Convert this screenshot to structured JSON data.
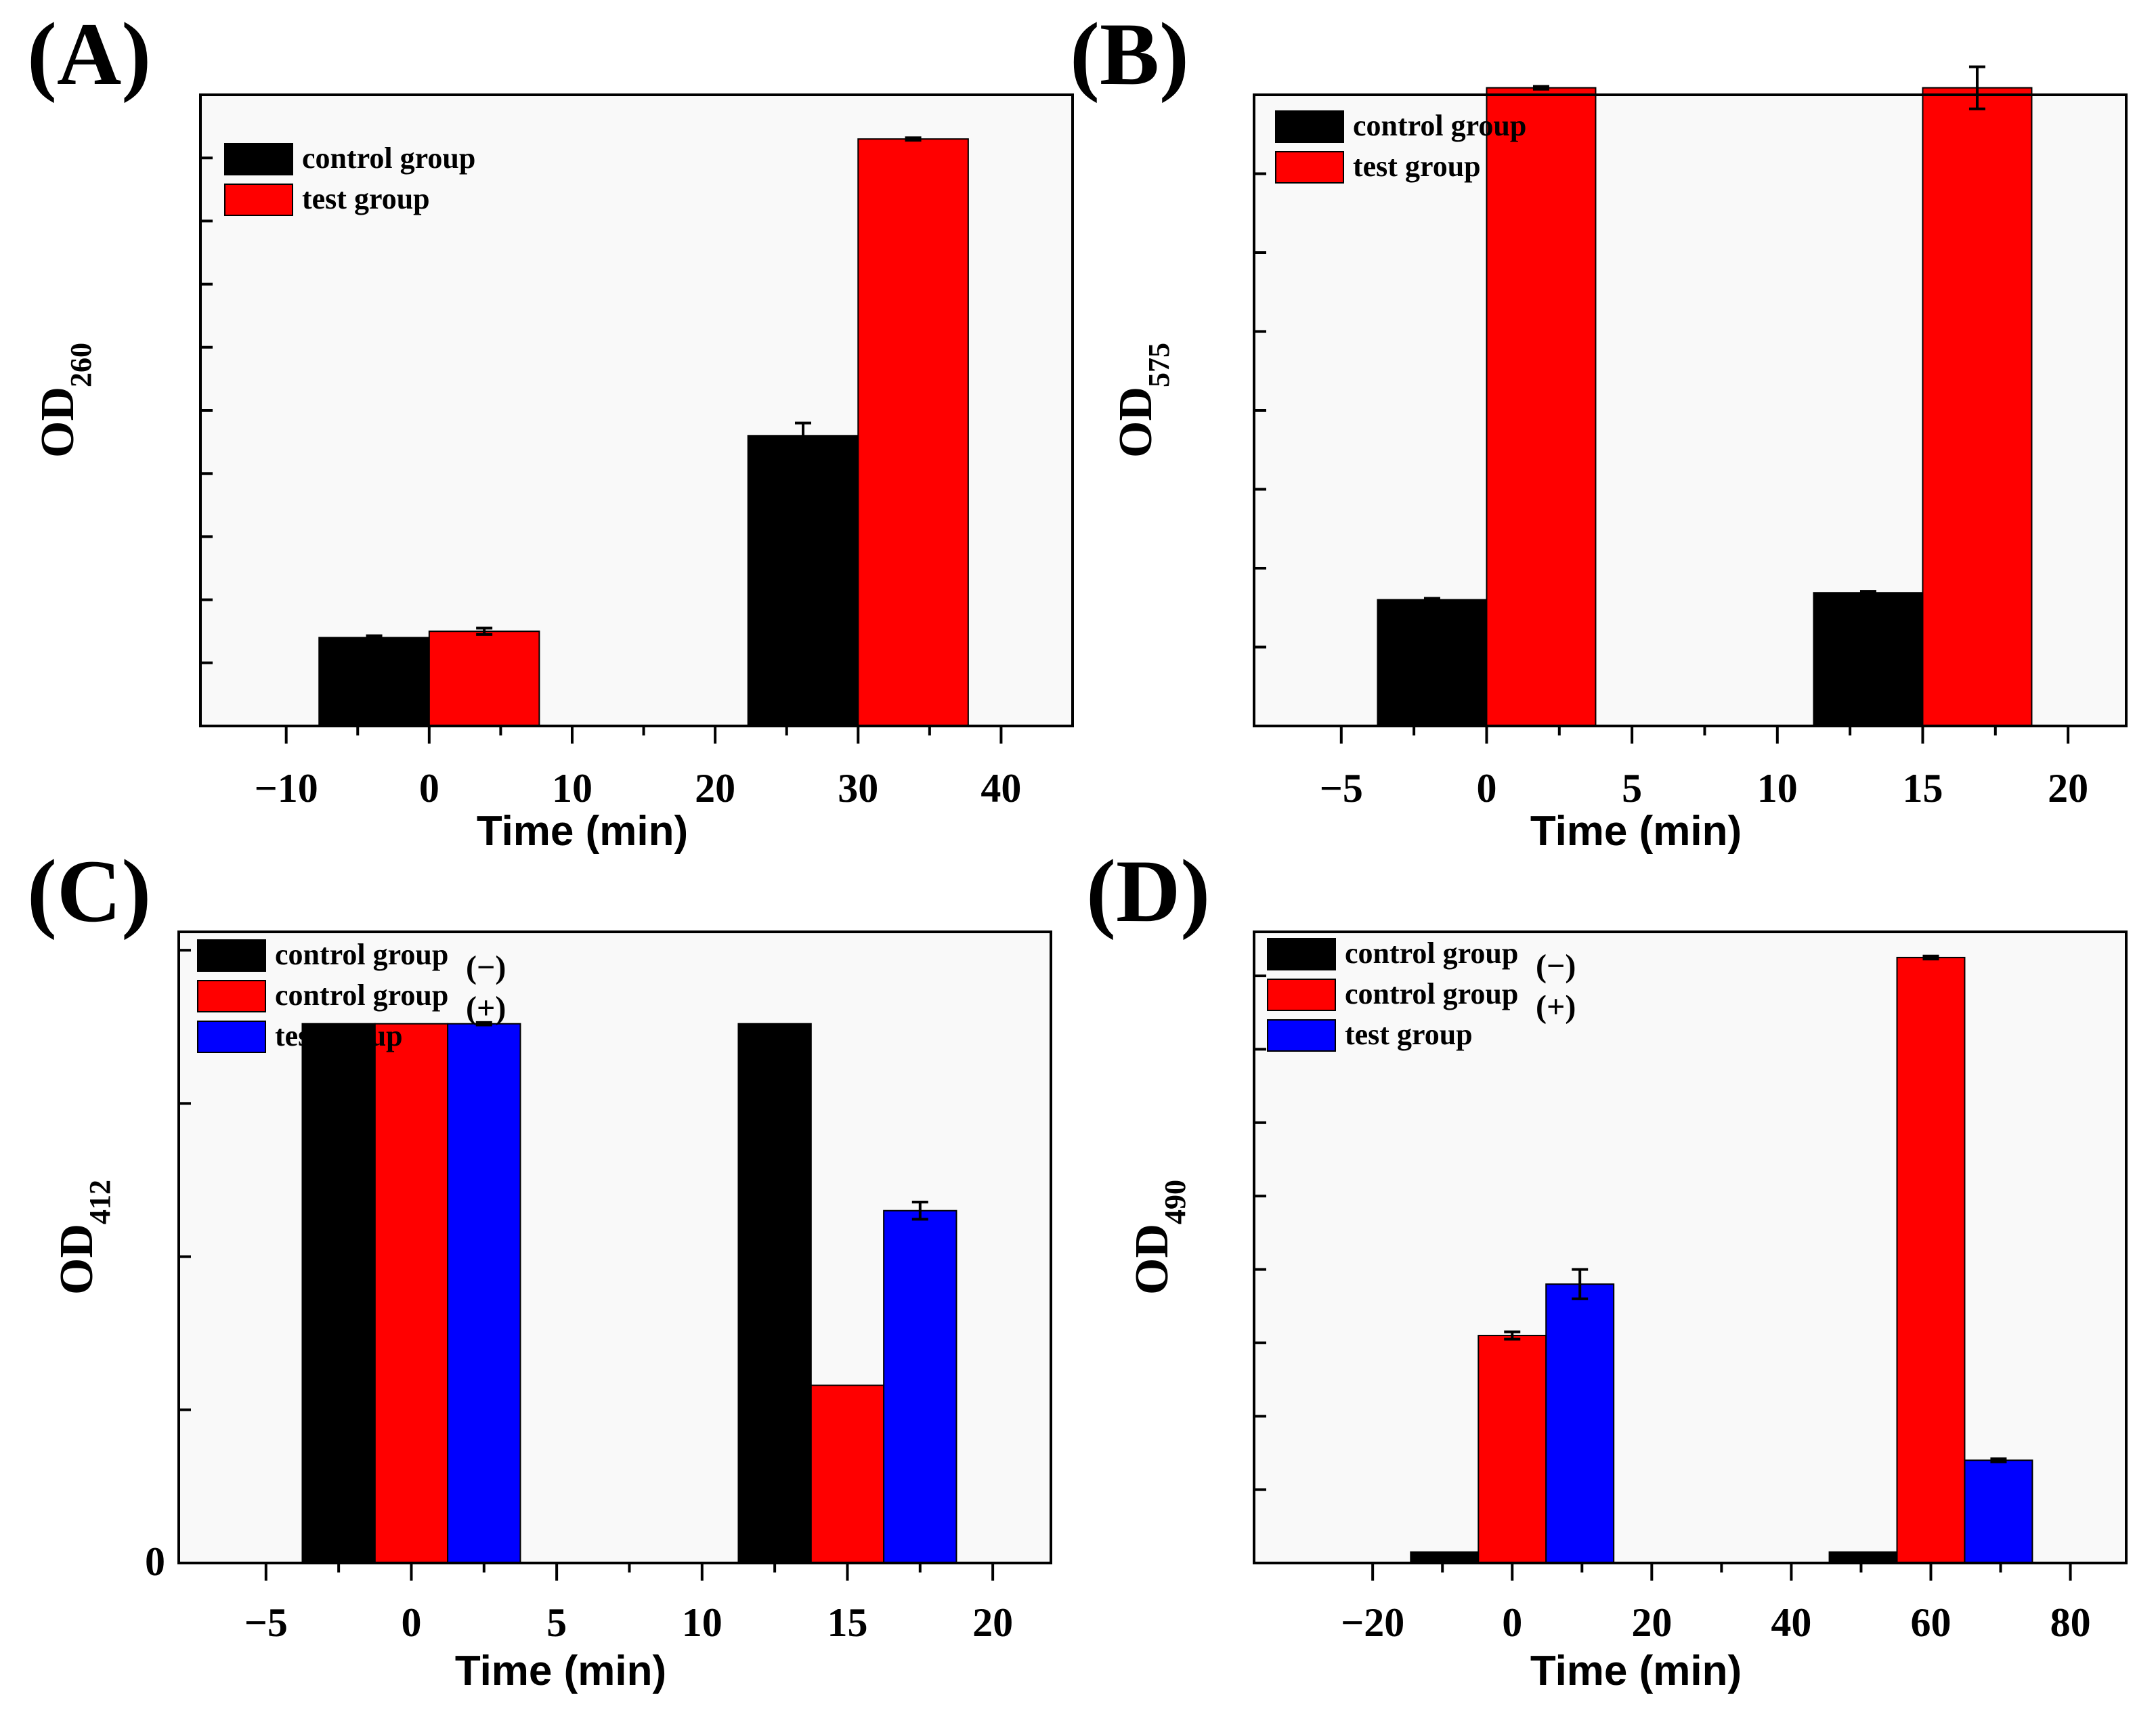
{
  "colors": {
    "black": "#000000",
    "red": "#ff0000",
    "blue": "#0000ff"
  },
  "chart_data": [
    {
      "panel": "(A)",
      "type": "bar",
      "title": "",
      "xlabel": "Time (min)",
      "ylabel": "OD",
      "ylabel_sub": "260",
      "xlim": [
        -16,
        45
      ],
      "ylim": [
        0,
        1
      ],
      "xticks": [
        -10,
        0,
        10,
        20,
        30,
        40
      ],
      "xtick_labels": [
        "−10",
        "0",
        "10",
        "20",
        "30",
        "40"
      ],
      "yticks_minor": [
        0.1,
        0.2,
        0.3,
        0.4,
        0.5,
        0.6,
        0.7,
        0.8,
        0.9
      ],
      "ytick_labels": [],
      "bar_width": 7.7,
      "groups": [
        0,
        30
      ],
      "legend_position": "top-left",
      "series": [
        {
          "name": "control  group",
          "color": "#000000",
          "values": [
            0.14,
            0.46
          ],
          "errors": [
            0.003,
            0.02
          ]
        },
        {
          "name": "test group",
          "color": "#ff0000",
          "values": [
            0.15,
            0.93
          ],
          "errors": [
            0.005,
            0.002
          ]
        }
      ]
    },
    {
      "panel": "(B)",
      "type": "bar",
      "title": "",
      "xlabel": "Time (min)",
      "ylabel": "OD",
      "ylabel_sub": "575",
      "xlim": [
        -8,
        22
      ],
      "ylim": [
        0,
        0.9
      ],
      "xticks": [
        -5,
        0,
        5,
        10,
        15,
        20
      ],
      "xtick_labels": [
        "−5",
        "0",
        "5",
        "10",
        "15",
        "20"
      ],
      "yticks_minor": [
        0.1125,
        0.225,
        0.3375,
        0.45,
        0.5625,
        0.675,
        0.7875
      ],
      "ytick_labels": [],
      "bar_width": 3.75,
      "groups": [
        0,
        15
      ],
      "legend_position": "top-left",
      "series": [
        {
          "name": "control group",
          "color": "#000000",
          "values": [
            0.18,
            0.19
          ],
          "errors": [
            0.002,
            0.002
          ]
        },
        {
          "name": "test group",
          "color": "#ff0000",
          "values": [
            0.91,
            0.91
          ],
          "errors": [
            0.002,
            0.03
          ]
        }
      ]
    },
    {
      "panel": "(C)",
      "type": "bar",
      "title": "",
      "xlabel": "Time (min)",
      "ylabel": "OD",
      "ylabel_sub": "412",
      "xlim": [
        -8,
        22
      ],
      "ylim": [
        0,
        1.03
      ],
      "xticks": [
        -5,
        0,
        5,
        10,
        15,
        20
      ],
      "xtick_labels": [
        "−5",
        "0",
        "5",
        "10",
        "15",
        "20"
      ],
      "yticks_minor": [
        0.25,
        0.5,
        0.75,
        1.0
      ],
      "ytick_labels": [
        "0"
      ],
      "bar_width": 2.5,
      "groups": [
        0,
        15
      ],
      "legend_position": "top-left",
      "series": [
        {
          "name": "control group",
          "suffix": "(−)",
          "color": "#000000",
          "values": [
            0.88,
            0.88
          ],
          "errors": [
            0,
            0
          ]
        },
        {
          "name": "control group",
          "suffix": "(+)",
          "color": "#ff0000",
          "values": [
            0.88,
            0.29
          ],
          "errors": [
            0,
            0
          ]
        },
        {
          "name": "test group",
          "suffix": "",
          "color": "#0000ff",
          "values": [
            0.88,
            0.575
          ],
          "errors": [
            0.002,
            0.014
          ]
        }
      ]
    },
    {
      "panel": "(D)",
      "type": "bar",
      "title": "",
      "xlabel": "Time (min)",
      "ylabel": "OD",
      "ylabel_sub": "490",
      "xlim": [
        -37,
        88
      ],
      "ylim": [
        0,
        0.86
      ],
      "xticks": [
        -20,
        0,
        20,
        40,
        60,
        80
      ],
      "xtick_labels": [
        "−20",
        "0",
        "20",
        "40",
        "60",
        "80"
      ],
      "yticks_minor": [
        0.1,
        0.2,
        0.3,
        0.4,
        0.5,
        0.6,
        0.7,
        0.8
      ],
      "ytick_labels": [],
      "bar_width": 9.7,
      "groups": [
        0,
        60
      ],
      "legend_position": "top-left",
      "series": [
        {
          "name": "control group",
          "suffix": "(−)",
          "color": "#000000",
          "values": [
            0.015,
            0.015
          ],
          "errors": [
            0,
            0
          ]
        },
        {
          "name": "control group",
          "suffix": "(+)",
          "color": "#ff0000",
          "values": [
            0.31,
            0.825
          ],
          "errors": [
            0.005,
            0.002
          ]
        },
        {
          "name": "test group",
          "suffix": "",
          "color": "#0000ff",
          "values": [
            0.38,
            0.14
          ],
          "errors": [
            0.02,
            0.002
          ]
        }
      ]
    }
  ]
}
